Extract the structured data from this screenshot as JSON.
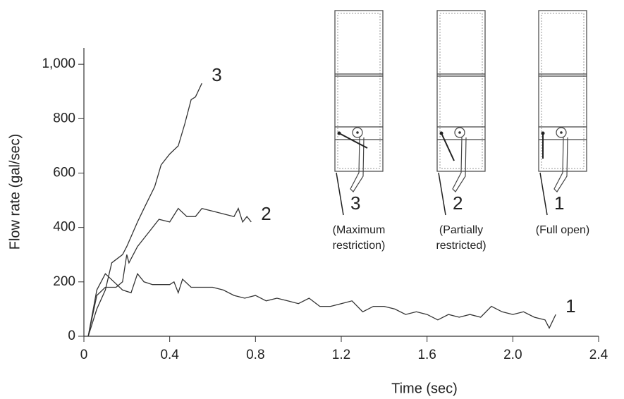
{
  "chart_data": {
    "type": "line",
    "xlabel": "Time (sec)",
    "ylabel": "Flow rate (gal/sec)",
    "xlim": [
      0,
      2.4
    ],
    "ylim": [
      0,
      1060
    ],
    "xticks": [
      0,
      0.4,
      0.8,
      1.2,
      1.6,
      {
        "value": 2,
        "label": "2.0"
      },
      2.4
    ],
    "yticks": [
      0,
      200,
      400,
      600,
      800,
      {
        "value": 1000,
        "label": "1,000"
      }
    ],
    "series": [
      {
        "name": "3",
        "color": "#333333",
        "x": [
          0.02,
          0.06,
          0.1,
          0.13,
          0.18,
          0.2,
          0.25,
          0.28,
          0.33,
          0.36,
          0.4,
          0.44,
          0.47,
          0.5,
          0.52,
          0.55
        ],
        "values": [
          0,
          100,
          170,
          270,
          300,
          330,
          420,
          470,
          550,
          630,
          670,
          700,
          780,
          870,
          880,
          930
        ]
      },
      {
        "name": "2",
        "color": "#333333",
        "x": [
          0.02,
          0.06,
          0.1,
          0.15,
          0.18,
          0.2,
          0.21,
          0.25,
          0.3,
          0.35,
          0.4,
          0.44,
          0.48,
          0.52,
          0.55,
          0.6,
          0.65,
          0.7,
          0.72,
          0.74,
          0.76,
          0.78
        ],
        "values": [
          0,
          150,
          180,
          180,
          200,
          300,
          270,
          330,
          380,
          430,
          420,
          470,
          440,
          440,
          470,
          460,
          450,
          440,
          470,
          420,
          440,
          420
        ]
      },
      {
        "name": "1",
        "color": "#333333",
        "x": [
          0.02,
          0.06,
          0.1,
          0.14,
          0.18,
          0.22,
          0.25,
          0.28,
          0.32,
          0.36,
          0.4,
          0.42,
          0.44,
          0.46,
          0.5,
          0.55,
          0.6,
          0.65,
          0.7,
          0.75,
          0.8,
          0.85,
          0.9,
          0.95,
          1.0,
          1.05,
          1.1,
          1.15,
          1.2,
          1.25,
          1.3,
          1.35,
          1.4,
          1.45,
          1.5,
          1.55,
          1.6,
          1.65,
          1.7,
          1.75,
          1.8,
          1.85,
          1.9,
          1.95,
          2.0,
          2.05,
          2.1,
          2.15,
          2.17,
          2.2
        ],
        "values": [
          0,
          170,
          230,
          200,
          170,
          160,
          230,
          200,
          190,
          190,
          190,
          200,
          160,
          210,
          180,
          180,
          180,
          170,
          150,
          140,
          150,
          130,
          140,
          130,
          120,
          140,
          110,
          110,
          120,
          130,
          90,
          110,
          110,
          100,
          80,
          90,
          80,
          60,
          80,
          70,
          80,
          70,
          110,
          90,
          80,
          90,
          70,
          60,
          30,
          80
        ]
      }
    ],
    "inset": [
      {
        "number": "3",
        "caption": [
          "(Maximum",
          "restriction)"
        ]
      },
      {
        "number": "2",
        "caption": [
          "(Partially",
          "restricted)"
        ]
      },
      {
        "number": "1",
        "caption": [
          "(Full open)"
        ]
      }
    ]
  }
}
